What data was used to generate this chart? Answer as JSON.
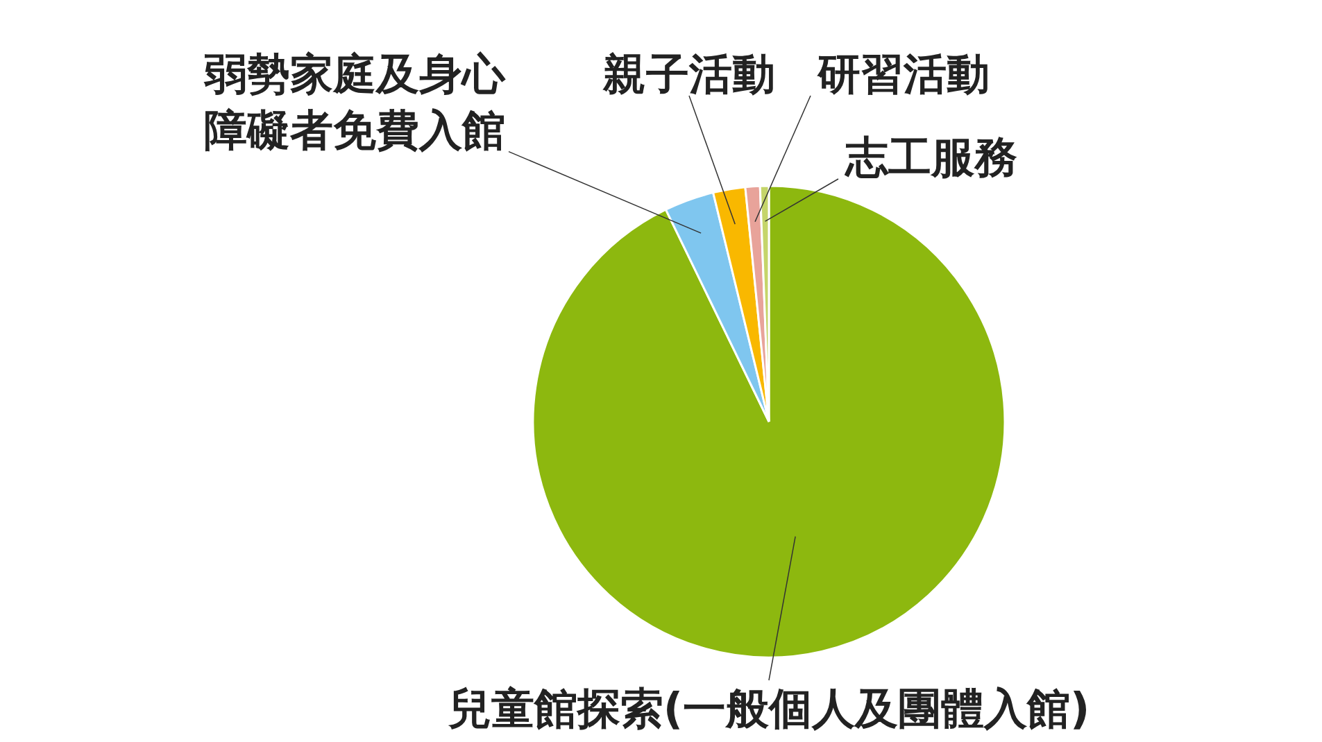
{
  "chart_data": {
    "type": "pie",
    "categories": [
      "兒童館探索(一般個人及團體入館)",
      "弱勢家庭及身心障礙者免費入館",
      "親子活動",
      "研習活動",
      "志工服務"
    ],
    "values": [
      92.8,
      3.4,
      2.2,
      1.0,
      0.6
    ],
    "colors": [
      "#8db80f",
      "#7fc6ef",
      "#f9b800",
      "#e8a39a",
      "#c5d56a"
    ]
  }
}
